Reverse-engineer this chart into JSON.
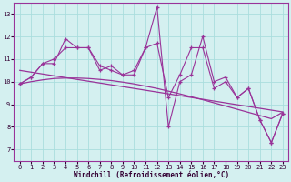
{
  "x": [
    0,
    1,
    2,
    3,
    4,
    5,
    6,
    7,
    8,
    9,
    10,
    11,
    12,
    13,
    14,
    15,
    16,
    17,
    18,
    19,
    20,
    21,
    22,
    23
  ],
  "line1": [
    9.9,
    10.2,
    10.8,
    10.8,
    11.9,
    11.5,
    11.5,
    10.5,
    10.7,
    10.3,
    10.3,
    11.5,
    13.3,
    8.0,
    10.0,
    10.3,
    12.0,
    10.0,
    10.2,
    9.3,
    9.7,
    8.3,
    7.3,
    8.6
  ],
  "line2": [
    9.9,
    10.2,
    10.8,
    11.0,
    11.5,
    11.5,
    11.5,
    10.7,
    10.5,
    10.3,
    10.5,
    11.5,
    11.7,
    9.3,
    10.3,
    11.5,
    11.5,
    9.7,
    10.0,
    9.3,
    9.7,
    8.3,
    7.3,
    8.6
  ],
  "trend_linear": [
    10.5,
    10.42,
    10.34,
    10.26,
    10.18,
    10.1,
    10.02,
    9.94,
    9.86,
    9.78,
    9.7,
    9.62,
    9.54,
    9.46,
    9.38,
    9.3,
    9.22,
    9.14,
    9.06,
    8.98,
    8.9,
    8.82,
    8.74,
    8.66
  ],
  "trend_curve": [
    9.9,
    10.0,
    10.08,
    10.14,
    10.16,
    10.16,
    10.14,
    10.1,
    10.05,
    9.98,
    9.9,
    9.8,
    9.7,
    9.58,
    9.46,
    9.33,
    9.2,
    9.06,
    8.92,
    8.78,
    8.64,
    8.5,
    8.36,
    8.65
  ],
  "line_color": "#993399",
  "bg_color": "#d4f0f0",
  "grid_color": "#aadddd",
  "xlabel": "Windchill (Refroidissement éolien,°C)",
  "xlim": [
    -0.5,
    23.5
  ],
  "ylim": [
    6.5,
    13.5
  ],
  "yticks": [
    7,
    8,
    9,
    10,
    11,
    12,
    13
  ],
  "xticks": [
    0,
    1,
    2,
    3,
    4,
    5,
    6,
    7,
    8,
    9,
    10,
    11,
    12,
    13,
    14,
    15,
    16,
    17,
    18,
    19,
    20,
    21,
    22,
    23
  ],
  "tick_fontsize": 5.0,
  "xlabel_fontsize": 5.5
}
